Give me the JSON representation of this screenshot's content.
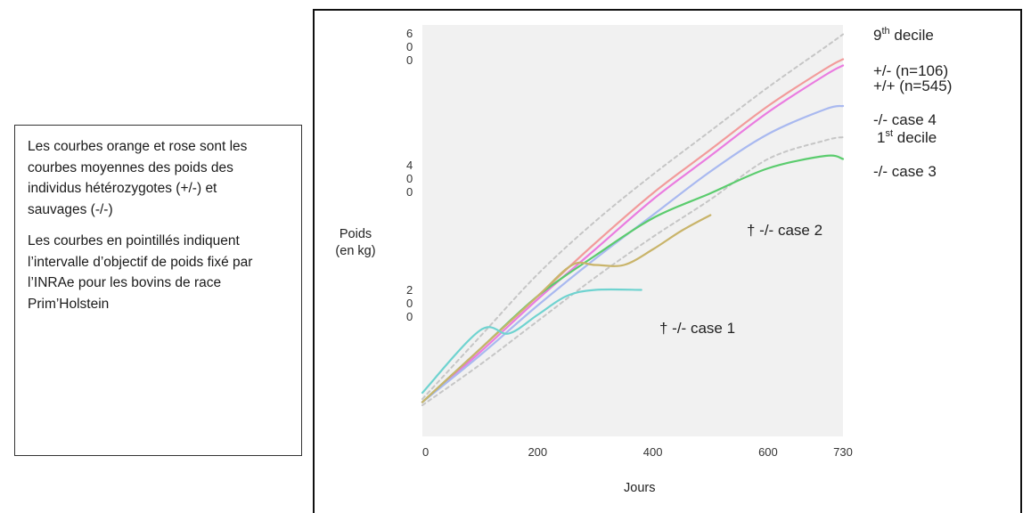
{
  "note": {
    "paragraph1": "Les courbes orange et rose sont les courbes moyennes des poids des individus hétérozygotes (+/-) et sauvages (-/-)",
    "paragraph2": "Les courbes en pointillés indiquent l’intervalle d’objectif de poids fixé par l’INRAe pour les bovins de race Prim’Holstein"
  },
  "axes": {
    "ylabel": "Poids (en kg)",
    "xlabel": "Jours"
  },
  "chart_data": {
    "type": "line",
    "xlabel": "Jours",
    "ylabel": "Poids (en kg)",
    "x_ticks": [
      0,
      200,
      400,
      600,
      730
    ],
    "x_tick_labels": [
      "0",
      "200",
      "400",
      "600",
      "730"
    ],
    "y_ticks": [
      200,
      400,
      600
    ],
    "y_tick_labels": [
      [
        "2",
        "0",
        "0"
      ],
      [
        "4",
        "0",
        "0"
      ],
      [
        "6",
        "0",
        "0"
      ]
    ],
    "xlim": [
      0,
      730
    ],
    "ylim": [
      -20,
      640
    ],
    "grid": false,
    "background": "#f1f1f1",
    "series": [
      {
        "name": "9th decile",
        "style": "dashed",
        "color": "#c6c6c6",
        "x": [
          0,
          100,
          200,
          300,
          400,
          500,
          600,
          700,
          730
        ],
        "y": [
          40,
          140,
          240,
          325,
          400,
          470,
          540,
          605,
          625
        ]
      },
      {
        "name": "1st decile",
        "style": "dashed",
        "color": "#c6c6c6",
        "x": [
          0,
          100,
          200,
          300,
          400,
          500,
          600,
          700,
          730
        ],
        "y": [
          30,
          95,
          165,
          235,
          300,
          360,
          425,
          455,
          460
        ]
      },
      {
        "name": "+/- (n=106)",
        "style": "solid",
        "color": "#f29b9b",
        "x": [
          0,
          100,
          200,
          300,
          400,
          500,
          600,
          700,
          730
        ],
        "y": [
          35,
          120,
          205,
          290,
          370,
          440,
          510,
          570,
          585
        ]
      },
      {
        "name": "+/+ (n=545)",
        "style": "solid",
        "color": "#ea7ce0",
        "x": [
          0,
          100,
          200,
          300,
          400,
          500,
          600,
          700,
          730
        ],
        "y": [
          35,
          115,
          200,
          280,
          360,
          430,
          500,
          560,
          575
        ]
      },
      {
        "name": "-/- case 4",
        "style": "solid",
        "color": "#a9b9f0",
        "x": [
          0,
          100,
          200,
          300,
          400,
          500,
          600,
          700,
          730
        ],
        "y": [
          35,
          110,
          190,
          265,
          335,
          405,
          465,
          505,
          510
        ]
      },
      {
        "name": "-/- case 3",
        "style": "solid",
        "color": "#5bcc6e",
        "x": [
          0,
          100,
          200,
          300,
          400,
          500,
          600,
          700,
          730
        ],
        "y": [
          35,
          120,
          205,
          270,
          330,
          370,
          410,
          430,
          425
        ]
      },
      {
        "name": "† -/- case 2",
        "style": "solid",
        "color": "#c9b46a",
        "x": [
          0,
          100,
          200,
          260,
          300,
          350,
          400,
          450,
          500
        ],
        "y": [
          35,
          120,
          205,
          255,
          255,
          255,
          280,
          310,
          335
        ]
      },
      {
        "name": "† -/- case 1",
        "style": "solid",
        "color": "#6fd3d0",
        "x": [
          0,
          100,
          150,
          200,
          250,
          300,
          380
        ],
        "y": [
          50,
          150,
          145,
          175,
          205,
          215,
          215
        ]
      }
    ],
    "labels": [
      {
        "text": "9",
        "sup": "th",
        "rest": "decile",
        "series": "9th decile"
      },
      {
        "text": "+/- (n=106)",
        "series": "+/- (n=106)"
      },
      {
        "text": "+/+ (n=545)",
        "series": "+/+ (n=545)"
      },
      {
        "text": "-/- case 4",
        "series": "-/- case 4"
      },
      {
        "text": "1",
        "sup": "st",
        "rest": "decile",
        "series": "1st decile"
      },
      {
        "text": "-/- case 3",
        "series": "-/- case 3"
      },
      {
        "text": "† -/- case 2",
        "series": "† -/- case 2"
      },
      {
        "text": "† -/- case 1",
        "series": "† -/- case 1"
      }
    ]
  }
}
